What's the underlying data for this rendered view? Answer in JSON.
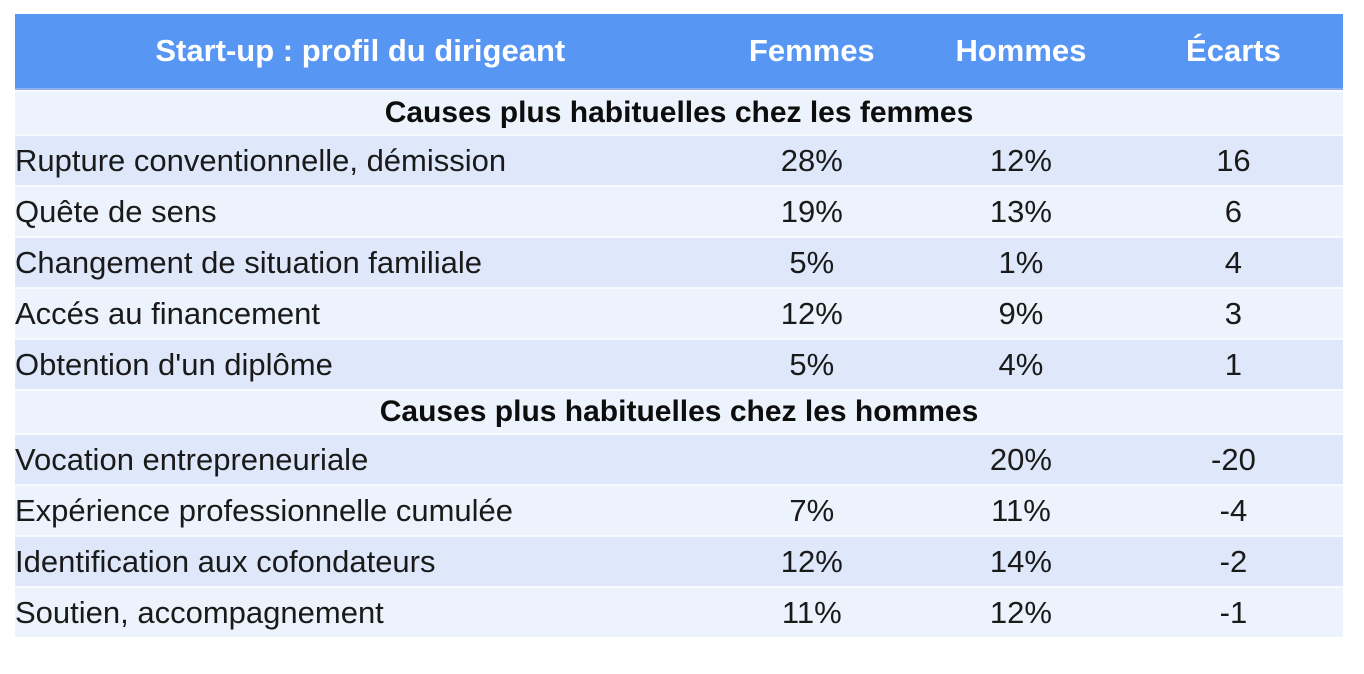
{
  "chart_data": {
    "type": "table",
    "title": "Start-up : profil du dirigeant",
    "columns": [
      "Femmes",
      "Hommes",
      "Écarts"
    ],
    "sections": [
      {
        "title": "Causes plus habituelles chez les femmes",
        "rows": [
          {
            "label": "Rupture conventionnelle, démission",
            "femmes": "28%",
            "hommes": "12%",
            "ecart": "16"
          },
          {
            "label": "Quête de sens",
            "femmes": "19%",
            "hommes": "13%",
            "ecart": "6"
          },
          {
            "label": "Changement de situation familiale",
            "femmes": "5%",
            "hommes": "1%",
            "ecart": "4"
          },
          {
            "label": "Accés au financement",
            "femmes": "12%",
            "hommes": "9%",
            "ecart": "3"
          },
          {
            "label": "Obtention d'un diplôme",
            "femmes": "5%",
            "hommes": "4%",
            "ecart": "1"
          }
        ]
      },
      {
        "title": "Causes plus habituelles chez les hommes",
        "rows": [
          {
            "label": "Vocation entrepreneuriale",
            "femmes": "",
            "hommes": "20%",
            "ecart": "-20"
          },
          {
            "label": "Expérience professionnelle cumulée",
            "femmes": "7%",
            "hommes": "11%",
            "ecart": "-4"
          },
          {
            "label": "Identification aux cofondateurs",
            "femmes": "12%",
            "hommes": "14%",
            "ecart": "-2"
          },
          {
            "label": "Soutien, accompagnement",
            "femmes": "11%",
            "hommes": "12%",
            "ecart": "-1"
          }
        ]
      }
    ]
  },
  "colors": {
    "header_bg": "#5896F4",
    "header_text": "#FFFFFF",
    "row_dark": "#DEE8FA",
    "row_light": "#EDF3FC",
    "text": "#1A1A1A"
  }
}
